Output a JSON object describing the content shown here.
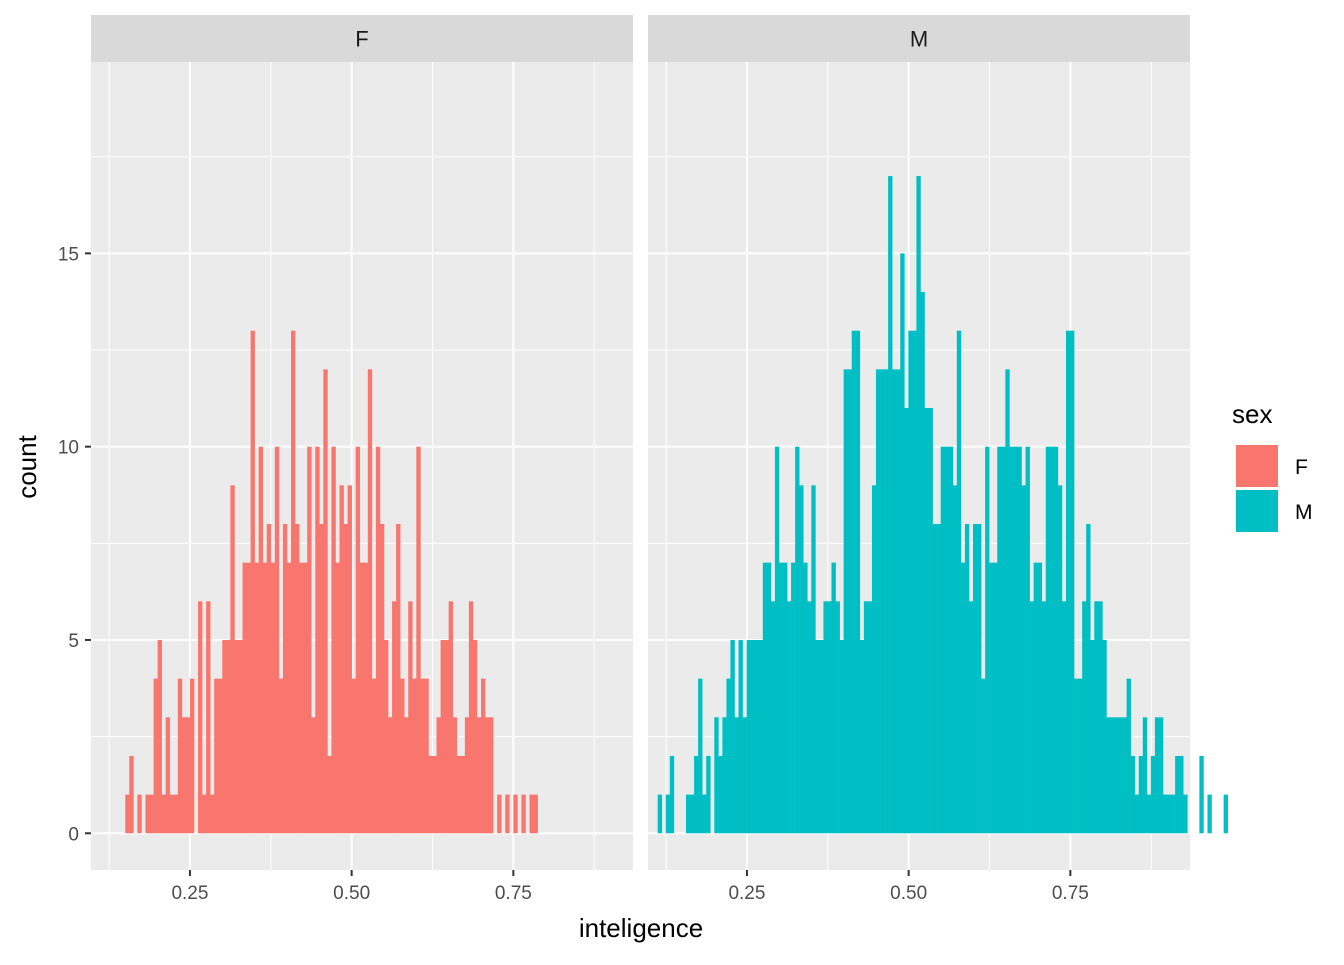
{
  "chart_data": {
    "type": "bar",
    "subtype": "faceted-histogram",
    "xlabel": "inteligence",
    "ylabel": "count",
    "xlim": [
      0.097,
      0.935
    ],
    "ylim": [
      -0.95,
      19.95
    ],
    "x_ticks": [
      0.25,
      0.5,
      0.75
    ],
    "x_tick_labels": [
      "0.25",
      "0.50",
      "0.75"
    ],
    "y_ticks": [
      0,
      5,
      10,
      15
    ],
    "y_tick_labels": [
      "0",
      "5",
      "10",
      "15"
    ],
    "grid": true,
    "bin_width": 0.00625,
    "legend": {
      "title": "sex",
      "position": "right",
      "entries": [
        {
          "label": "F",
          "color": "#F8766D"
        },
        {
          "label": "M",
          "color": "#00BFC4"
        }
      ]
    },
    "facets": [
      {
        "label": "F",
        "color": "#F8766D",
        "bin_start": 0.15,
        "counts": [
          1,
          2,
          0,
          1,
          0,
          1,
          1,
          4,
          5,
          1,
          3,
          1,
          1,
          4,
          3,
          3,
          4,
          0,
          6,
          1,
          6,
          1,
          4,
          4,
          5,
          5,
          9,
          5,
          5,
          7,
          7,
          13,
          7,
          10,
          7,
          8,
          7,
          10,
          4,
          8,
          7,
          13,
          8,
          7,
          7,
          10,
          3,
          10,
          8,
          12,
          2,
          10,
          7,
          9,
          8,
          9,
          4,
          10,
          7,
          7,
          12,
          4,
          10,
          8,
          5,
          3,
          6,
          8,
          4,
          3,
          6,
          4,
          10,
          4,
          4,
          2,
          2,
          3,
          5,
          5,
          6,
          3,
          2,
          2,
          3,
          6,
          5,
          3,
          4,
          3,
          3,
          0,
          1,
          0,
          1,
          0,
          1,
          0,
          1,
          0,
          1,
          1
        ]
      },
      {
        "label": "M",
        "color": "#00BFC4",
        "bin_start": 0.112,
        "counts": [
          1,
          0,
          1,
          2,
          0,
          0,
          0,
          1,
          1,
          2,
          4,
          1,
          2,
          0,
          3,
          2,
          3,
          4,
          5,
          3,
          5,
          3,
          5,
          5,
          5,
          5,
          7,
          7,
          6,
          10,
          7,
          7,
          6,
          7,
          10,
          9,
          7,
          6,
          9,
          5,
          5,
          6,
          6,
          7,
          6,
          5,
          12,
          12,
          13,
          13,
          5,
          6,
          6,
          9,
          12,
          12,
          12,
          17,
          12,
          12,
          15,
          11,
          13,
          13,
          17,
          14,
          11,
          11,
          8,
          8,
          10,
          10,
          10,
          9,
          13,
          7,
          8,
          6,
          8,
          8,
          4,
          10,
          7,
          7,
          10,
          10,
          12,
          10,
          10,
          10,
          9,
          10,
          6,
          7,
          7,
          6,
          10,
          10,
          10,
          9,
          6,
          13,
          13,
          4,
          4,
          6,
          8,
          5,
          6,
          6,
          5,
          3,
          3,
          3,
          3,
          3,
          4,
          2,
          1,
          2,
          3,
          1,
          2,
          3,
          3,
          1,
          1,
          1,
          2,
          2,
          1,
          0,
          0,
          0,
          2,
          0,
          1,
          0,
          0,
          0,
          1
        ]
      }
    ]
  }
}
